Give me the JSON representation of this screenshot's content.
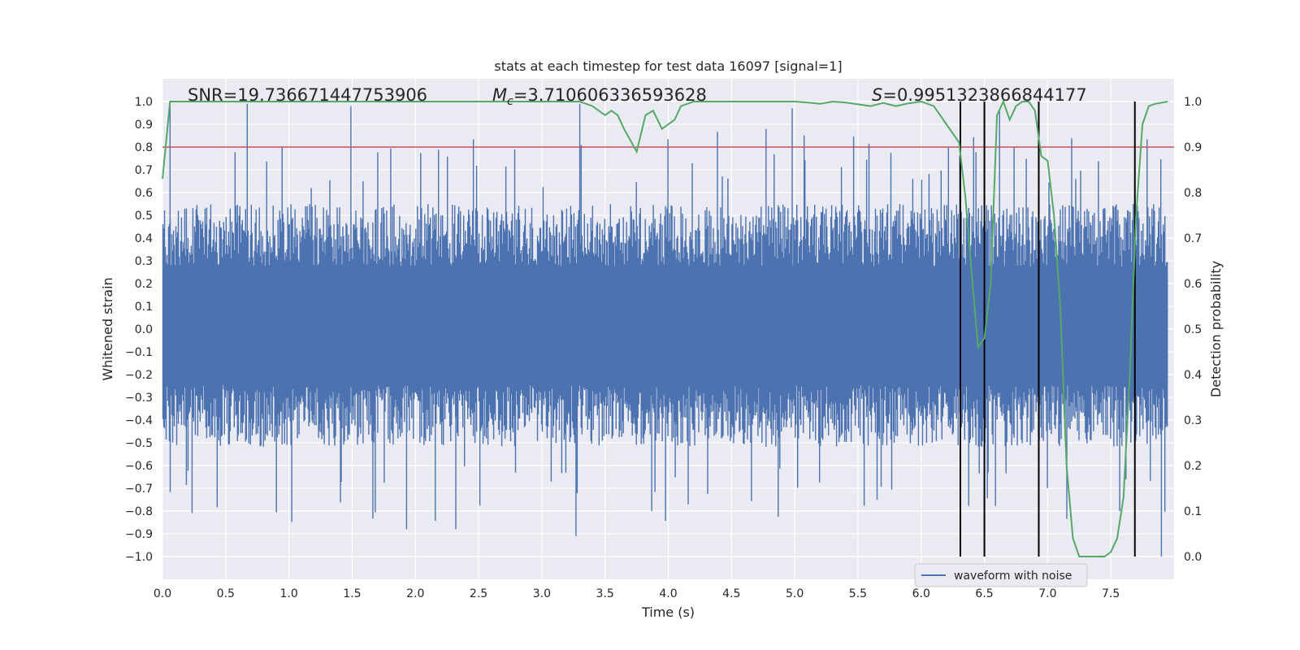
{
  "chart_data": {
    "type": "line",
    "title": "stats at each timestep for test data 16097 [signal=1]",
    "xlabel": "Time (s)",
    "ylabel": "Whitened strain",
    "y2label": "Detection probability",
    "xlim": [
      0.0,
      8.0
    ],
    "ylim": [
      -1.1,
      1.1
    ],
    "y2lim": [
      -0.05,
      1.05
    ],
    "xticks": [
      0.0,
      0.5,
      1.0,
      1.5,
      2.0,
      2.5,
      3.0,
      3.5,
      4.0,
      4.5,
      5.0,
      5.5,
      6.0,
      6.5,
      7.0,
      7.5
    ],
    "xtick_labels": [
      "0.0",
      "0.5",
      "1.0",
      "1.5",
      "2.0",
      "2.5",
      "3.0",
      "3.5",
      "4.0",
      "4.5",
      "5.0",
      "5.5",
      "6.0",
      "6.5",
      "7.0",
      "7.5"
    ],
    "yticks": [
      1.0,
      0.9,
      0.8,
      0.7,
      0.6,
      0.5,
      0.4,
      0.3,
      0.2,
      0.1,
      0.0,
      -0.1,
      -0.2,
      -0.3,
      -0.4,
      -0.5,
      -0.6,
      -0.7,
      -0.8,
      -0.9,
      -1.0
    ],
    "ytick_labels": [
      "1.0",
      "0.9",
      "0.8",
      "0.7",
      "0.6",
      "0.5",
      "0.4",
      "0.3",
      "0.2",
      "0.1",
      "0.0",
      "−0.1",
      "−0.2",
      "−0.3",
      "−0.4",
      "−0.5",
      "−0.6",
      "−0.7",
      "−0.8",
      "−0.9",
      "−1.0"
    ],
    "y2ticks": [
      1.0,
      0.9,
      0.8,
      0.7,
      0.6,
      0.5,
      0.4,
      0.3,
      0.2,
      0.1,
      0.0
    ],
    "y2tick_labels": [
      "1.0",
      "0.9",
      "0.8",
      "0.7",
      "0.6",
      "0.5",
      "0.4",
      "0.3",
      "0.2",
      "0.1",
      "0.0"
    ],
    "grid": true,
    "legend": {
      "position": "lower-right",
      "entries": [
        "waveform with noise"
      ]
    },
    "annotations": {
      "snr": "SNR=19.736671447753906",
      "mc_symbol": "M",
      "mc_sub": "c",
      "mc_value": "=3.710606336593628",
      "s_symbol": "S",
      "s_value": "=0.9951323866844177"
    },
    "threshold": {
      "axis": "y2",
      "value": 0.9,
      "color": "#c44e52"
    },
    "vertical_lines": {
      "x": [
        6.31,
        6.5,
        6.93,
        7.69
      ],
      "color": "#000000"
    },
    "waveform": {
      "name": "waveform with noise",
      "color": "#4c72b0",
      "envelope_typical": [
        -0.45,
        0.5
      ],
      "notable_peaks": [
        {
          "x": 0.06,
          "y": 1.0
        },
        {
          "x": 0.67,
          "y": 0.99
        },
        {
          "x": 1.49,
          "y": 0.98
        },
        {
          "x": 3.3,
          "y": 0.99
        },
        {
          "x": 3.27,
          "y": -0.91
        },
        {
          "x": 1.93,
          "y": -0.88
        },
        {
          "x": 2.32,
          "y": -0.88
        },
        {
          "x": 4.98,
          "y": 0.97
        },
        {
          "x": 6.62,
          "y": 0.96
        },
        {
          "x": 7.9,
          "y": -1.0
        },
        {
          "x": 7.57,
          "y": -0.8
        }
      ]
    },
    "series": [
      {
        "name": "",
        "axis": "y2",
        "color": "#55a868",
        "x": [
          0.0,
          0.06,
          0.1,
          0.2,
          0.5,
          1.0,
          2.0,
          3.0,
          3.3,
          3.4,
          3.5,
          3.55,
          3.6,
          3.65,
          3.75,
          3.82,
          3.88,
          3.95,
          4.05,
          4.1,
          4.2,
          4.5,
          5.0,
          5.1,
          5.2,
          5.3,
          5.4,
          5.5,
          5.6,
          5.7,
          5.8,
          5.9,
          6.0,
          6.1,
          6.15,
          6.2,
          6.25,
          6.3,
          6.35,
          6.4,
          6.45,
          6.5,
          6.55,
          6.6,
          6.65,
          6.7,
          6.75,
          6.8,
          6.85,
          6.9,
          6.95,
          7.0,
          7.05,
          7.1,
          7.15,
          7.2,
          7.25,
          7.3,
          7.35,
          7.4,
          7.45,
          7.5,
          7.55,
          7.6,
          7.65,
          7.7,
          7.75,
          7.8,
          7.85,
          7.95
        ],
        "values": [
          0.83,
          1.0,
          1.0,
          1.0,
          1.0,
          1.0,
          1.0,
          1.0,
          1.0,
          0.99,
          0.97,
          0.98,
          0.97,
          0.94,
          0.89,
          0.97,
          0.98,
          0.94,
          0.96,
          0.99,
          1.0,
          1.0,
          1.0,
          0.998,
          0.995,
          1.0,
          0.998,
          0.994,
          0.99,
          0.997,
          0.99,
          0.996,
          1.0,
          0.99,
          0.97,
          0.95,
          0.93,
          0.91,
          0.79,
          0.62,
          0.46,
          0.48,
          0.6,
          0.97,
          1.0,
          0.96,
          0.99,
          1.0,
          1.0,
          0.98,
          0.88,
          0.87,
          0.75,
          0.55,
          0.2,
          0.04,
          0.0,
          0.0,
          0.0,
          0.0,
          0.0,
          0.01,
          0.04,
          0.13,
          0.4,
          0.75,
          0.95,
          0.99,
          0.995,
          1.0
        ]
      }
    ]
  }
}
